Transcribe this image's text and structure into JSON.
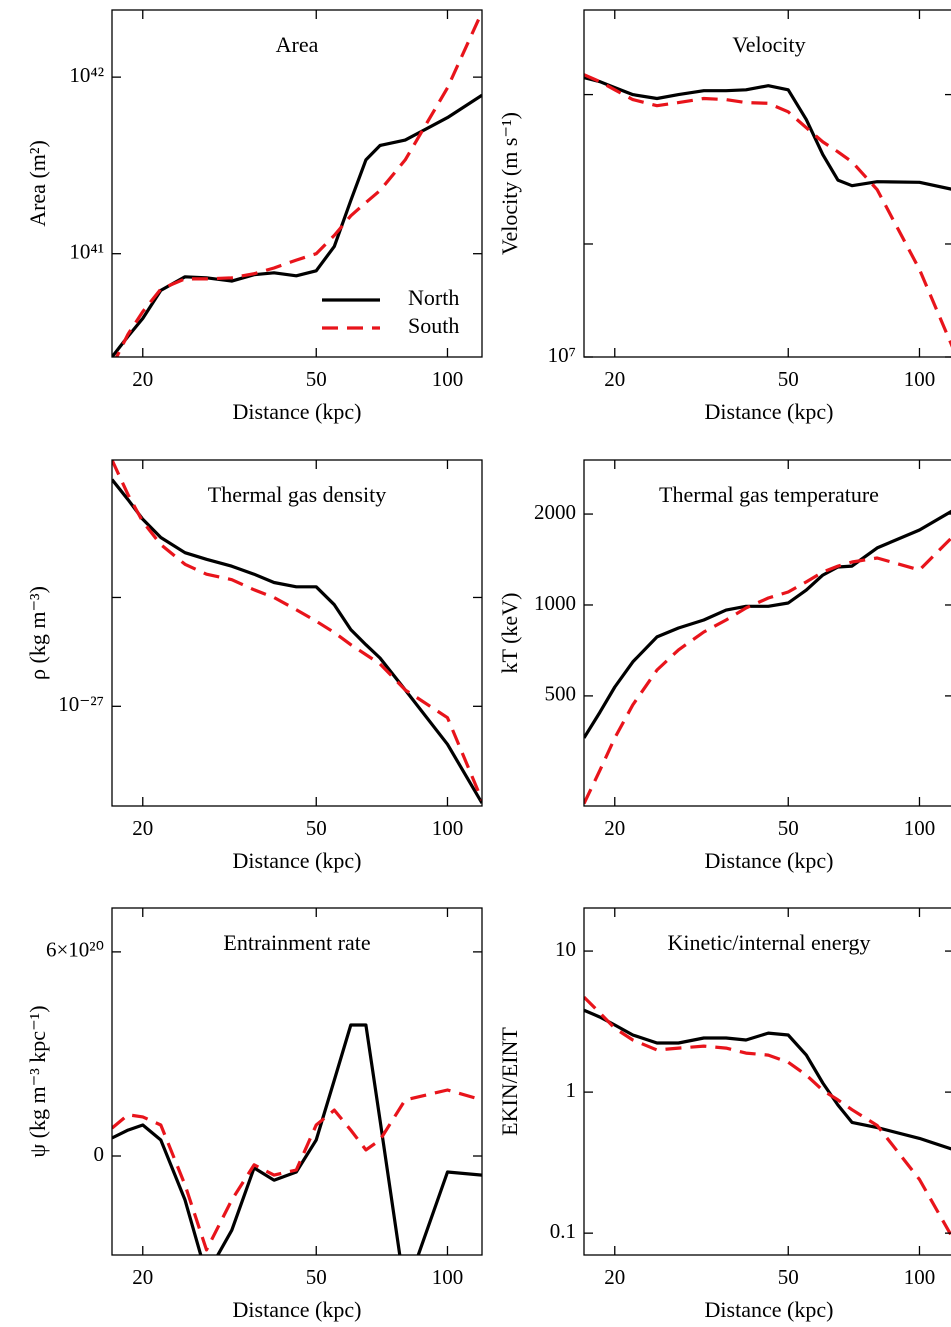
{
  "chart_data": [
    {
      "type": "line",
      "title": "Area",
      "xlabel": "Distance (kpc)",
      "ylabel": "Area (m²)",
      "xlog": true,
      "ylog": true,
      "xlim": [
        17,
        120
      ],
      "xticks": [
        20,
        50,
        100
      ],
      "ylim": [
        2.6e+40,
        2.4e+42
      ],
      "yticks": [
        {
          "value": 1e+41,
          "label": "10⁴¹"
        },
        {
          "value": 1e+42,
          "label": "10⁴²"
        }
      ],
      "legend": "lower right",
      "x": [
        17,
        18.5,
        20,
        22,
        25,
        28,
        32,
        36,
        40,
        45,
        50,
        55,
        60,
        65,
        70,
        80,
        100,
        120
      ],
      "series": [
        {
          "name": "North",
          "color": "#000000",
          "values": [
            2.6e+40,
            3.4e+40,
            4.3e+40,
            6.2e+40,
            7.4e+40,
            7.3e+40,
            7e+40,
            7.6e+40,
            7.8e+40,
            7.5e+40,
            8e+40,
            1.1e+41,
            2e+41,
            3.4e+41,
            4.1e+41,
            4.4e+41,
            5.9e+41,
            7.9e+41
          ]
        },
        {
          "name": "South",
          "color": "#e8141b",
          "values": [
            2.3e+40,
            3.5e+40,
            4.7e+40,
            6.3e+40,
            7.2e+40,
            7.2e+40,
            7.3e+40,
            7.7e+40,
            8.3e+40,
            9.2e+40,
            1e+41,
            1.27e+41,
            1.64e+41,
            1.95e+41,
            2.28e+41,
            3.4e+41,
            8.7e+41,
            2.34e+42
          ]
        }
      ]
    },
    {
      "type": "line",
      "title": "Velocity",
      "xlabel": "Distance (kpc)",
      "ylabel": "Velocity (m s⁻¹)",
      "xlog": true,
      "ylog": true,
      "xlim": [
        17,
        120
      ],
      "xticks": [
        20,
        50,
        100
      ],
      "ylim": [
        10000000.0,
        84000000.0
      ],
      "yticks": [
        {
          "value": 10000000.0,
          "label": "10⁷"
        }
      ],
      "yminor": [
        20000000.0,
        50000000.0
      ],
      "x": [
        17,
        18.5,
        20,
        22,
        25,
        28,
        32,
        36,
        40,
        45,
        50,
        55,
        60,
        65,
        70,
        80,
        100,
        120
      ],
      "series": [
        {
          "name": "North",
          "color": "#000000",
          "values": [
            55500000.0,
            54100000.0,
            52200000.0,
            50000000.0,
            48800000.0,
            50000000.0,
            51200000.0,
            51200000.0,
            51500000.0,
            52800000.0,
            51500000.0,
            42900000.0,
            34600000.0,
            29600000.0,
            28600000.0,
            29300000.0,
            29200000.0,
            27900000.0
          ]
        },
        {
          "name": "South",
          "color": "#e8141b",
          "values": [
            56500000.0,
            54100000.0,
            51500000.0,
            48500000.0,
            46700000.0,
            47600000.0,
            48800000.0,
            48500000.0,
            47600000.0,
            47400000.0,
            45000000.0,
            40800000.0,
            37400000.0,
            35200000.0,
            33100000.0,
            27900000.0,
            17100000.0,
            10400000.0
          ]
        }
      ]
    },
    {
      "type": "line",
      "title": "Thermal gas density",
      "xlabel": "Distance (kpc)",
      "ylabel": "ρ (kg m⁻³)",
      "xlog": true,
      "ylog": true,
      "xlim": [
        17,
        120
      ],
      "xticks": [
        20,
        50,
        100
      ],
      "ylim": [
        5.3e-28,
        4.8e-27
      ],
      "yticks": [
        {
          "value": 1e-27,
          "label": "10⁻²⁷"
        }
      ],
      "yminor": [
        2e-27
      ],
      "x": [
        17,
        18.5,
        20,
        22,
        25,
        28,
        32,
        36,
        40,
        45,
        50,
        55,
        60,
        65,
        70,
        80,
        100,
        120
      ],
      "series": [
        {
          "name": "North",
          "color": "#000000",
          "values": [
            4.24e-27,
            3.73e-27,
            3.29e-27,
            2.93e-27,
            2.66e-27,
            2.55e-27,
            2.44e-27,
            2.32e-27,
            2.2e-27,
            2.14e-27,
            2.14e-27,
            1.91e-27,
            1.63e-27,
            1.48e-27,
            1.36e-27,
            1.11e-27,
            7.85e-28,
            5.4e-28
          ]
        },
        {
          "name": "South",
          "color": "#e8141b",
          "values": [
            4.8e-27,
            3.85e-27,
            3.24e-27,
            2.8e-27,
            2.47e-27,
            2.32e-27,
            2.24e-27,
            2.1e-27,
            2e-27,
            1.85e-27,
            1.72e-27,
            1.6e-27,
            1.48e-27,
            1.39e-27,
            1.31e-27,
            1.11e-27,
            9.3e-28,
            5.5e-28
          ]
        }
      ]
    },
    {
      "type": "line",
      "title": "Thermal gas temperature",
      "xlabel": "Distance (kpc)",
      "ylabel": "kT (keV)",
      "xlog": true,
      "ylog": true,
      "xlim": [
        17,
        120
      ],
      "xticks": [
        20,
        50,
        100
      ],
      "ylim": [
        216,
        3020
      ],
      "yticks": [
        500,
        1000,
        2000
      ],
      "x": [
        17,
        18.5,
        20,
        22,
        25,
        28,
        32,
        36,
        40,
        45,
        50,
        55,
        60,
        65,
        70,
        80,
        100,
        120
      ],
      "series": [
        {
          "name": "North",
          "color": "#000000",
          "values": [
            363,
            442,
            535,
            648,
            784,
            839,
            892,
            962,
            990,
            990,
            1015,
            1120,
            1256,
            1336,
            1345,
            1545,
            1771,
            2064
          ]
        },
        {
          "name": "South",
          "color": "#e8141b",
          "values": [
            220,
            284,
            363,
            467,
            609,
            710,
            814,
            892,
            977,
            1055,
            1104,
            1192,
            1286,
            1345,
            1388,
            1431,
            1306,
            1700
          ]
        }
      ]
    },
    {
      "type": "line",
      "title": "Entrainment rate",
      "xlabel": "Distance (kpc)",
      "ylabel": "ψ (kg m⁻³ kpc⁻¹)",
      "xlog": true,
      "ylog": false,
      "xlim": [
        17,
        120
      ],
      "xticks": [
        20,
        50,
        100
      ],
      "ylim": [
        -2.91e+20,
        7.29e+20
      ],
      "yticks": [
        0,
        {
          "value": 6e+20,
          "label": "6×10²⁰"
        }
      ],
      "x": [
        17,
        18.5,
        20,
        22,
        25,
        28,
        32,
        36,
        40,
        45,
        50,
        55,
        60,
        65,
        70,
        80,
        100,
        120
      ],
      "series": [
        {
          "name": "North",
          "color": "#000000",
          "values": [
            5.3e+19,
            7.6e+19,
            9.1e+19,
            4.7e+19,
            -1.29e+20,
            -3.5e+20,
            -2.18e+20,
            -3.5e+19,
            -7.1e+19,
            -4.7e+19,
            4.7e+19,
            2.23e+20,
            3.85e+20,
            3.85e+20,
            1.06e+20,
            -4e+20,
            -4.7e+19,
            -5.6e+19
          ]
        },
        {
          "name": "South",
          "color": "#e8141b",
          "values": [
            8.2e+19,
            1.21e+20,
            1.15e+20,
            9.1e+19,
            -8.5e+19,
            -2.76e+20,
            -1.29e+20,
            -2.6e+19,
            -5.6e+19,
            -4.1e+19,
            9.1e+19,
            1.35e+20,
            7.6e+19,
            1.8e+19,
            4.7e+19,
            1.65e+20,
            1.94e+20,
            1.65e+20
          ]
        }
      ]
    },
    {
      "type": "line",
      "title": "Kinetic/internal energy",
      "xlabel": "Distance (kpc)",
      "ylabel": "EKIN/EINT",
      "xlog": true,
      "ylog": true,
      "xlim": [
        17,
        120
      ],
      "xticks": [
        20,
        50,
        100
      ],
      "ylim": [
        0.07,
        20.2
      ],
      "yticks": [
        0.1,
        1,
        10
      ],
      "x": [
        17,
        18.5,
        20,
        22,
        25,
        28,
        32,
        36,
        40,
        45,
        50,
        55,
        60,
        65,
        70,
        80,
        100,
        120
      ],
      "series": [
        {
          "name": "North",
          "color": "#000000",
          "values": [
            3.81,
            3.4,
            2.99,
            2.54,
            2.23,
            2.23,
            2.42,
            2.42,
            2.34,
            2.62,
            2.54,
            1.83,
            1.16,
            0.81,
            0.61,
            0.56,
            0.47,
            0.39
          ]
        },
        {
          "name": "South",
          "color": "#e8141b",
          "values": [
            4.72,
            3.63,
            2.84,
            2.34,
            1.99,
            2.05,
            2.12,
            2.05,
            1.89,
            1.83,
            1.63,
            1.32,
            1.03,
            0.88,
            0.75,
            0.58,
            0.24,
            0.089
          ]
        }
      ]
    }
  ]
}
